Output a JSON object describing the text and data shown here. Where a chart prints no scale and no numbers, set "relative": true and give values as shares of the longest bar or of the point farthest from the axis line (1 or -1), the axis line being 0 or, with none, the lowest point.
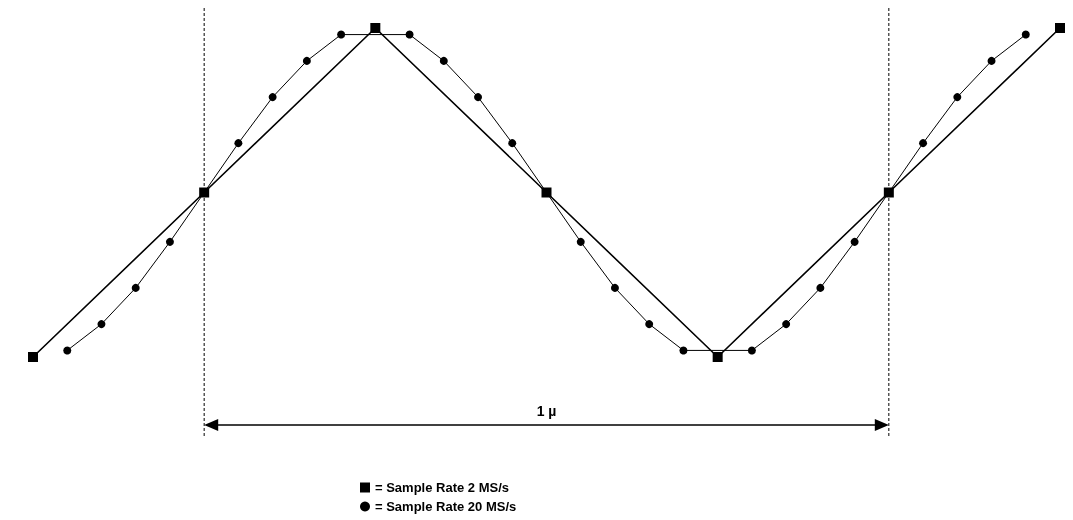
{
  "chart_data": {
    "type": "line",
    "relative": true,
    "grid": false,
    "legend": "bottom",
    "categories": [
      null,
      null,
      null,
      null,
      null,
      null,
      null,
      null,
      null,
      null,
      null,
      null,
      null,
      null,
      null,
      null,
      null,
      null,
      null,
      null,
      null,
      null,
      null,
      null,
      null,
      null,
      null,
      null,
      null,
      null,
      null
    ],
    "annotations": [
      "1 µ"
    ],
    "series": [
      {
        "name": "= Sample Rate 2 MS/s",
        "color": "#000000",
        "marker": "square",
        "values": [
          0,
          null,
          null,
          null,
          null,
          0.5,
          null,
          null,
          null,
          null,
          1,
          null,
          null,
          null,
          null,
          0.5,
          null,
          null,
          null,
          null,
          0,
          null,
          null,
          null,
          null,
          0.5,
          null,
          null,
          null,
          null,
          1
        ]
      },
      {
        "name": "= Sample Rate 20 MS/s",
        "color": "#000000",
        "marker": "circle",
        "values": [
          null,
          0.02,
          0.1,
          0.21,
          0.35,
          0.5,
          0.65,
          0.79,
          0.9,
          0.98,
          null,
          0.98,
          0.9,
          0.79,
          0.65,
          0.5,
          0.35,
          0.21,
          0.1,
          0.02,
          null,
          0.02,
          0.1,
          0.21,
          0.35,
          0.5,
          0.65,
          0.79,
          0.9,
          0.98,
          null
        ]
      }
    ]
  }
}
